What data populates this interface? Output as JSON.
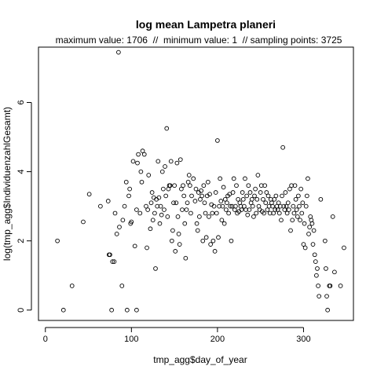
{
  "chart_data": {
    "type": "scatter",
    "title": "log mean Lampetra planeri",
    "subtitle": "maximum value: 1706  //  minimum value: 1  // sampling points: 3725",
    "xlabel": "tmp_agg$day_of_year",
    "ylabel": "log(tmp_agg$IndividuenzahlGesamt)",
    "xlim": [
      -8,
      358
    ],
    "ylim": [
      -0.3,
      7.6
    ],
    "x_ticks": [
      0,
      100,
      200,
      300
    ],
    "y_ticks": [
      0,
      2,
      4,
      6
    ],
    "grid": false,
    "marker": "open-circle",
    "color": "#000000",
    "points": [
      [
        14,
        2.0
      ],
      [
        21,
        0.0
      ],
      [
        31,
        0.7
      ],
      [
        44,
        2.55
      ],
      [
        51,
        3.35
      ],
      [
        64,
        3.0
      ],
      [
        73,
        3.15
      ],
      [
        74,
        1.6
      ],
      [
        75,
        1.6
      ],
      [
        77,
        0.0
      ],
      [
        78,
        1.4
      ],
      [
        80,
        1.4
      ],
      [
        81,
        2.8
      ],
      [
        83,
        2.2
      ],
      [
        85,
        7.45
      ],
      [
        86,
        2.4
      ],
      [
        89,
        0.7
      ],
      [
        90,
        2.6
      ],
      [
        92,
        3.0
      ],
      [
        94,
        3.7
      ],
      [
        95,
        0.0
      ],
      [
        97,
        3.3
      ],
      [
        98,
        3.5
      ],
      [
        99,
        2.5
      ],
      [
        100,
        2.55
      ],
      [
        102,
        4.3
      ],
      [
        104,
        1.85
      ],
      [
        106,
        0.0
      ],
      [
        106,
        2.9
      ],
      [
        107,
        4.25
      ],
      [
        108,
        4.5
      ],
      [
        110,
        2.8
      ],
      [
        111,
        4.0
      ],
      [
        112,
        3.7
      ],
      [
        113,
        4.6
      ],
      [
        115,
        4.5
      ],
      [
        117,
        3.0
      ],
      [
        118,
        1.8
      ],
      [
        119,
        2.9
      ],
      [
        120,
        3.9
      ],
      [
        122,
        2.35
      ],
      [
        123,
        3.1
      ],
      [
        124,
        3.4
      ],
      [
        125,
        2.6
      ],
      [
        126,
        3.25
      ],
      [
        127,
        2.8
      ],
      [
        128,
        1.2
      ],
      [
        129,
        3.2
      ],
      [
        130,
        3.0
      ],
      [
        131,
        4.3
      ],
      [
        132,
        3.25
      ],
      [
        133,
        2.5
      ],
      [
        134,
        3.0
      ],
      [
        135,
        2.75
      ],
      [
        136,
        4.0
      ],
      [
        137,
        3.5
      ],
      [
        138,
        2.9
      ],
      [
        139,
        4.15
      ],
      [
        140,
        3.3
      ],
      [
        141,
        5.25
      ],
      [
        142,
        2.7
      ],
      [
        143,
        3.5
      ],
      [
        144,
        3.6
      ],
      [
        145,
        3.6
      ],
      [
        146,
        4.3
      ],
      [
        147,
        2.0
      ],
      [
        148,
        2.3
      ],
      [
        149,
        3.1
      ],
      [
        150,
        3.6
      ],
      [
        151,
        1.7
      ],
      [
        152,
        3.1
      ],
      [
        153,
        4.25
      ],
      [
        154,
        2.7
      ],
      [
        155,
        2.2
      ],
      [
        156,
        1.9
      ],
      [
        157,
        4.35
      ],
      [
        158,
        3.5
      ],
      [
        159,
        2.9
      ],
      [
        160,
        3.6
      ],
      [
        161,
        3.3
      ],
      [
        162,
        2.5
      ],
      [
        163,
        1.5
      ],
      [
        164,
        2.9
      ],
      [
        165,
        3.1
      ],
      [
        166,
        3.7
      ],
      [
        167,
        3.9
      ],
      [
        168,
        3.6
      ],
      [
        169,
        2.8
      ],
      [
        170,
        3.3
      ],
      [
        172,
        3.8
      ],
      [
        174,
        3.15
      ],
      [
        175,
        3.5
      ],
      [
        176,
        2.5
      ],
      [
        177,
        2.3
      ],
      [
        178,
        3.4
      ],
      [
        179,
        2.7
      ],
      [
        180,
        3.2
      ],
      [
        181,
        3.45
      ],
      [
        182,
        3.3
      ],
      [
        183,
        2.0
      ],
      [
        184,
        3.6
      ],
      [
        185,
        3.1
      ],
      [
        186,
        2.8
      ],
      [
        187,
        2.1
      ],
      [
        188,
        3.3
      ],
      [
        189,
        3.7
      ],
      [
        190,
        2.7
      ],
      [
        191,
        3.35
      ],
      [
        192,
        1.9
      ],
      [
        193,
        3.05
      ],
      [
        194,
        2.8
      ],
      [
        195,
        2.0
      ],
      [
        196,
        3.0
      ],
      [
        197,
        1.7
      ],
      [
        198,
        3.4
      ],
      [
        199,
        2.8
      ],
      [
        200,
        4.9
      ],
      [
        201,
        2.1
      ],
      [
        202,
        3.0
      ],
      [
        203,
        3.8
      ],
      [
        204,
        3.15
      ],
      [
        205,
        2.6
      ],
      [
        206,
        3.0
      ],
      [
        207,
        3.55
      ],
      [
        208,
        2.5
      ],
      [
        209,
        3.2
      ],
      [
        210,
        2.9
      ],
      [
        211,
        3.1
      ],
      [
        212,
        3.3
      ],
      [
        213,
        2.8
      ],
      [
        214,
        3.35
      ],
      [
        215,
        3.0
      ],
      [
        216,
        2.0
      ],
      [
        217,
        3.0
      ],
      [
        218,
        3.4
      ],
      [
        219,
        3.8
      ],
      [
        220,
        2.9
      ],
      [
        221,
        3.0
      ],
      [
        222,
        3.6
      ],
      [
        223,
        2.8
      ],
      [
        224,
        3.2
      ],
      [
        225,
        2.85
      ],
      [
        226,
        3.1
      ],
      [
        227,
        3.0
      ],
      [
        228,
        2.9
      ],
      [
        229,
        3.4
      ],
      [
        230,
        3.2
      ],
      [
        231,
        3.0
      ],
      [
        232,
        3.8
      ],
      [
        233,
        2.9
      ],
      [
        234,
        3.3
      ],
      [
        235,
        2.75
      ],
      [
        236,
        3.6
      ],
      [
        237,
        2.9
      ],
      [
        238,
        3.4
      ],
      [
        239,
        3.1
      ],
      [
        240,
        3.2
      ],
      [
        241,
        3.0
      ],
      [
        242,
        2.7
      ],
      [
        243,
        3.3
      ],
      [
        244,
        3.5
      ],
      [
        245,
        2.8
      ],
      [
        246,
        3.2
      ],
      [
        247,
        3.9
      ],
      [
        248,
        3.0
      ],
      [
        249,
        2.9
      ],
      [
        250,
        3.4
      ],
      [
        251,
        3.6
      ],
      [
        252,
        2.85
      ],
      [
        253,
        3.2
      ],
      [
        254,
        2.8
      ],
      [
        255,
        3.6
      ],
      [
        256,
        3.1
      ],
      [
        257,
        3.4
      ],
      [
        258,
        2.9
      ],
      [
        259,
        3.3
      ],
      [
        260,
        3.0
      ],
      [
        261,
        2.8
      ],
      [
        262,
        3.2
      ],
      [
        263,
        3.1
      ],
      [
        264,
        3.0
      ],
      [
        265,
        2.8
      ],
      [
        266,
        3.2
      ],
      [
        267,
        2.9
      ],
      [
        268,
        3.3
      ],
      [
        269,
        3.0
      ],
      [
        270,
        2.9
      ],
      [
        271,
        3.1
      ],
      [
        272,
        2.8
      ],
      [
        273,
        3.0
      ],
      [
        274,
        2.6
      ],
      [
        275,
        3.3
      ],
      [
        276,
        4.7
      ],
      [
        277,
        3.0
      ],
      [
        278,
        2.9
      ],
      [
        279,
        3.4
      ],
      [
        280,
        3.0
      ],
      [
        281,
        2.8
      ],
      [
        282,
        3.1
      ],
      [
        283,
        2.9
      ],
      [
        284,
        3.5
      ],
      [
        285,
        2.3
      ],
      [
        286,
        3.6
      ],
      [
        287,
        2.6
      ],
      [
        288,
        3.0
      ],
      [
        289,
        2.8
      ],
      [
        290,
        3.6
      ],
      [
        291,
        3.2
      ],
      [
        292,
        2.9
      ],
      [
        293,
        2.7
      ],
      [
        294,
        3.3
      ],
      [
        295,
        3.0
      ],
      [
        296,
        2.6
      ],
      [
        297,
        3.5
      ],
      [
        298,
        2.8
      ],
      [
        299,
        3.1
      ],
      [
        300,
        1.9
      ],
      [
        301,
        2.5
      ],
      [
        302,
        1.8
      ],
      [
        303,
        3.0
      ],
      [
        304,
        3.3
      ],
      [
        305,
        3.8
      ],
      [
        306,
        2.2
      ],
      [
        307,
        2.4
      ],
      [
        308,
        2.7
      ],
      [
        309,
        2.6
      ],
      [
        310,
        2.5
      ],
      [
        311,
        1.9
      ],
      [
        312,
        2.3
      ],
      [
        313,
        1.6
      ],
      [
        314,
        1.4
      ],
      [
        315,
        1.0
      ],
      [
        316,
        1.2
      ],
      [
        317,
        0.7
      ],
      [
        318,
        0.4
      ],
      [
        320,
        3.2
      ],
      [
        325,
        2.0
      ],
      [
        326,
        1.2
      ],
      [
        327,
        0.4
      ],
      [
        328,
        0.0
      ],
      [
        330,
        0.7
      ],
      [
        331,
        0.7
      ],
      [
        334,
        2.7
      ],
      [
        336,
        1.1
      ],
      [
        343,
        0.7
      ],
      [
        347,
        1.8
      ]
    ]
  }
}
